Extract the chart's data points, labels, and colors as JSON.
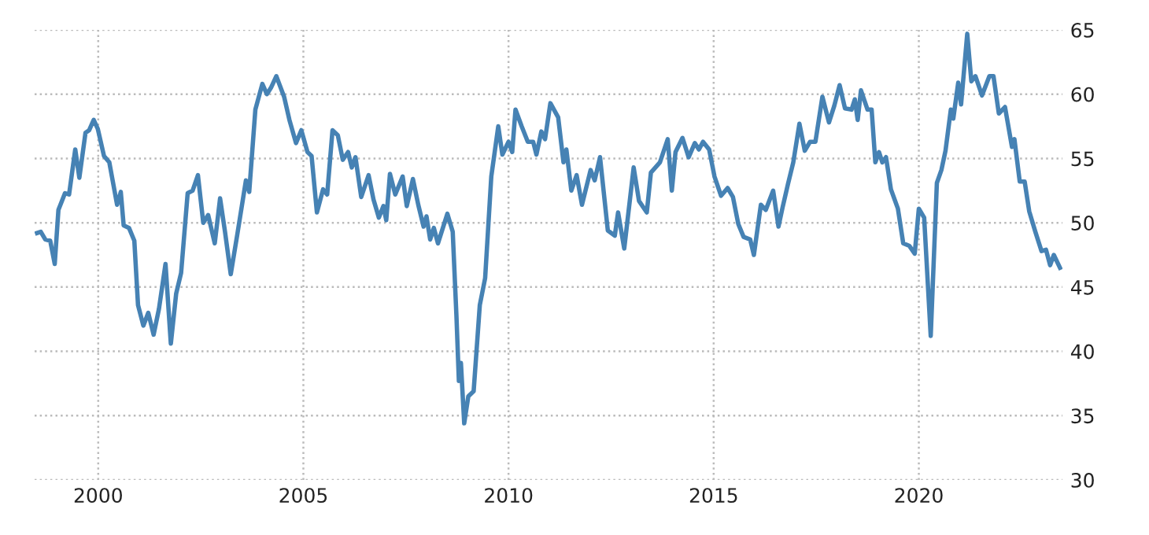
{
  "chart_data": {
    "type": "line",
    "x": [
      1998.51,
      1998.6,
      1998.71,
      1998.83,
      1998.94,
      1999.03,
      1999.19,
      1999.29,
      1999.44,
      1999.54,
      1999.69,
      1999.78,
      1999.89,
      1999.99,
      2000.14,
      2000.27,
      2000.46,
      2000.55,
      2000.62,
      2000.75,
      2000.88,
      2000.97,
      2001.1,
      2001.22,
      2001.35,
      2001.48,
      2001.64,
      2001.77,
      2001.9,
      2002.02,
      2002.18,
      2002.3,
      2002.43,
      2002.56,
      2002.68,
      2002.84,
      2002.97,
      2003.09,
      2003.23,
      2003.39,
      2003.6,
      2003.68,
      2003.83,
      2004.0,
      2004.11,
      2004.21,
      2004.34,
      2004.53,
      2004.66,
      2004.82,
      2004.95,
      2005.1,
      2005.2,
      2005.33,
      2005.48,
      2005.58,
      2005.71,
      2005.84,
      2005.96,
      2006.09,
      2006.18,
      2006.27,
      2006.41,
      2006.59,
      2006.71,
      2006.84,
      2006.95,
      2007.02,
      2007.11,
      2007.24,
      2007.42,
      2007.52,
      2007.67,
      2007.8,
      2007.93,
      2008.0,
      2008.09,
      2008.18,
      2008.28,
      2008.51,
      2008.64,
      2008.73,
      2008.79,
      2008.84,
      2008.92,
      2009.02,
      2009.15,
      2009.3,
      2009.43,
      2009.58,
      2009.75,
      2009.85,
      2010.0,
      2010.09,
      2010.17,
      2010.32,
      2010.47,
      2010.6,
      2010.68,
      2010.8,
      2010.89,
      2011.02,
      2011.21,
      2011.34,
      2011.41,
      2011.53,
      2011.66,
      2011.79,
      2012.0,
      2012.1,
      2012.23,
      2012.42,
      2012.59,
      2012.67,
      2012.82,
      2013.05,
      2013.18,
      2013.37,
      2013.47,
      2013.69,
      2013.88,
      2013.98,
      2014.07,
      2014.24,
      2014.39,
      2014.54,
      2014.64,
      2014.74,
      2014.89,
      2015.02,
      2015.18,
      2015.34,
      2015.47,
      2015.6,
      2015.73,
      2015.89,
      2015.98,
      2016.15,
      2016.27,
      2016.45,
      2016.58,
      2016.68,
      2016.81,
      2016.94,
      2017.09,
      2017.22,
      2017.35,
      2017.48,
      2017.65,
      2017.81,
      2017.94,
      2018.07,
      2018.2,
      2018.36,
      2018.44,
      2018.51,
      2018.59,
      2018.75,
      2018.85,
      2018.94,
      2019.03,
      2019.11,
      2019.2,
      2019.32,
      2019.49,
      2019.62,
      2019.77,
      2019.9,
      2020.0,
      2020.13,
      2020.29,
      2020.44,
      2020.55,
      2020.65,
      2020.78,
      2020.84,
      2020.96,
      2021.03,
      2021.18,
      2021.28,
      2021.38,
      2021.54,
      2021.72,
      2021.82,
      2021.95,
      2022.1,
      2022.27,
      2022.33,
      2022.46,
      2022.58,
      2022.69,
      2022.84,
      2022.99,
      2023.1,
      2023.2,
      2023.29,
      2023.44
    ],
    "series": [
      {
        "color": "#4682b4",
        "values": [
          49.2,
          49.3,
          48.7,
          48.6,
          46.8,
          51.0,
          52.3,
          52.2,
          55.7,
          53.5,
          57.0,
          57.2,
          58.0,
          57.3,
          55.2,
          54.7,
          51.4,
          52.4,
          49.8,
          49.6,
          48.6,
          43.6,
          42.0,
          43.0,
          41.3,
          43.3,
          46.8,
          40.6,
          44.5,
          46.1,
          52.3,
          52.5,
          53.7,
          50.0,
          50.6,
          48.4,
          51.9,
          49.3,
          46.0,
          49.1,
          53.3,
          52.4,
          58.8,
          60.8,
          60.0,
          60.5,
          61.4,
          59.8,
          58.0,
          56.2,
          57.2,
          55.5,
          55.2,
          50.8,
          52.6,
          52.2,
          57.2,
          56.8,
          54.9,
          55.5,
          54.3,
          55.1,
          52.0,
          53.7,
          51.8,
          50.4,
          51.3,
          50.2,
          53.8,
          52.2,
          53.6,
          51.3,
          53.4,
          51.4,
          49.7,
          50.5,
          48.7,
          49.6,
          48.4,
          50.7,
          49.3,
          42.8,
          37.7,
          39.1,
          34.4,
          36.5,
          36.9,
          43.6,
          45.7,
          53.6,
          57.5,
          55.3,
          56.3,
          55.5,
          58.8,
          57.5,
          56.3,
          56.3,
          55.3,
          57.1,
          56.5,
          59.3,
          58.2,
          54.7,
          55.7,
          52.5,
          53.7,
          51.4,
          54.1,
          53.3,
          55.1,
          49.4,
          49.0,
          50.8,
          48.0,
          54.3,
          51.7,
          50.8,
          53.9,
          54.7,
          56.5,
          52.5,
          55.5,
          56.6,
          55.1,
          56.2,
          55.7,
          56.3,
          55.7,
          53.6,
          52.1,
          52.7,
          52.0,
          49.9,
          48.9,
          48.7,
          47.5,
          51.4,
          51.0,
          52.5,
          49.7,
          51.2,
          53.0,
          54.7,
          57.7,
          55.6,
          56.3,
          56.3,
          59.8,
          57.8,
          59.1,
          60.7,
          58.9,
          58.8,
          59.6,
          58.0,
          60.3,
          58.8,
          58.8,
          54.7,
          55.5,
          54.7,
          55.1,
          52.6,
          51.1,
          48.4,
          48.2,
          47.6,
          51.1,
          50.4,
          41.2,
          53.1,
          54.1,
          55.6,
          58.8,
          58.1,
          60.9,
          59.2,
          64.7,
          61.0,
          61.4,
          59.9,
          61.4,
          61.4,
          58.5,
          59.0,
          55.9,
          56.5,
          53.2,
          53.2,
          50.9,
          49.3,
          47.8,
          47.9,
          46.7,
          47.5,
          46.5
        ]
      }
    ],
    "xlim": [
      1998.45,
      2023.5
    ],
    "xticks": [
      2000,
      2005,
      2010,
      2015,
      2020
    ],
    "ylim": [
      30,
      65
    ],
    "yticks": [
      30,
      35,
      40,
      45,
      50,
      55,
      60,
      65
    ],
    "grid": true,
    "line_style": "solid",
    "marker": "none"
  }
}
